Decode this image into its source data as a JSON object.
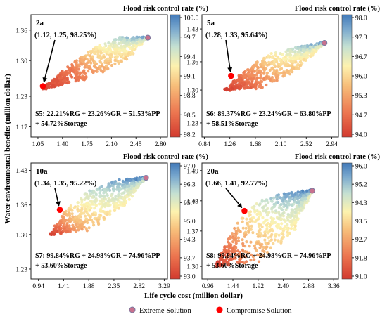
{
  "figure": {
    "y_axis_title": "Water environmental benefits (million dollar)",
    "x_axis_title": "Life cycle cost (million dollar)",
    "legend": [
      {
        "label": "Extreme Solution",
        "color": "#c8718e"
      },
      {
        "label": "Compromise Solution",
        "color": "#ff0000"
      }
    ]
  },
  "chart_data": [
    {
      "type": "scatter",
      "panel": "2a",
      "colorbar_title": "Flood risk control rate (%)",
      "colorbar_ticks": [
        "100.0",
        "99.7",
        "99.4",
        "99.1",
        "98.8",
        "98.5",
        "98.2"
      ],
      "colorbar_range": [
        98.2,
        100.0
      ],
      "x_ticks": [
        "1.05",
        "1.40",
        "1.75",
        "2.10",
        "2.45",
        "2.80"
      ],
      "y_ticks": [
        "1.36",
        "1.30",
        "1.23",
        "1.17"
      ],
      "xlim": [
        0.95,
        2.9
      ],
      "ylim": [
        1.15,
        1.39
      ],
      "front_points": [
        {
          "x": 1.12,
          "y": 1.245,
          "flood": 98.25
        },
        {
          "x": 1.5,
          "y": 1.29,
          "flood": 98.6
        },
        {
          "x": 1.85,
          "y": 1.325,
          "flood": 99.2
        },
        {
          "x": 2.2,
          "y": 1.345,
          "flood": 99.6
        },
        {
          "x": 2.6,
          "y": 1.345,
          "flood": 99.9
        }
      ],
      "back_points": [
        {
          "x": 1.12,
          "y": 1.245
        },
        {
          "x": 1.7,
          "y": 1.262
        },
        {
          "x": 2.3,
          "y": 1.3
        },
        {
          "x": 2.6,
          "y": 1.345
        }
      ],
      "extreme_solution": {
        "x": 2.62,
        "y": 1.345
      },
      "compromise_solution": {
        "x": 1.12,
        "y": 1.25,
        "flood": 98.25
      },
      "annotation": "(1.12, 1.25, 98.25%)",
      "scheme_line1": "S5: 22.21%RG + 23.26%GR + 51.53%PP",
      "scheme_line2": "+ 54.72%Storage"
    },
    {
      "type": "scatter",
      "panel": "5a",
      "colorbar_title": "Flood risk control rate (%)",
      "colorbar_ticks": [
        "98.0",
        "97.3",
        "96.7",
        "96.0",
        "95.3",
        "94.7",
        "94.0"
      ],
      "colorbar_range": [
        94.0,
        98.0
      ],
      "x_ticks": [
        "0.84",
        "1.26",
        "1.68",
        "2.10",
        "2.52",
        "2.94"
      ],
      "y_ticks": [
        "1.43",
        "1.36",
        "1.30",
        "1.23"
      ],
      "xlim": [
        0.8,
        3.05
      ],
      "ylim": [
        1.2,
        1.46
      ],
      "front_points": [
        {
          "x": 1.17,
          "y": 1.3,
          "flood": 94.0
        },
        {
          "x": 1.5,
          "y": 1.34,
          "flood": 95.0
        },
        {
          "x": 1.9,
          "y": 1.375,
          "flood": 96.2
        },
        {
          "x": 2.3,
          "y": 1.39,
          "flood": 97.0
        },
        {
          "x": 2.8,
          "y": 1.4,
          "flood": 97.8
        }
      ],
      "back_points": [
        {
          "x": 1.17,
          "y": 1.3
        },
        {
          "x": 1.8,
          "y": 1.305
        },
        {
          "x": 2.4,
          "y": 1.345
        },
        {
          "x": 2.8,
          "y": 1.4
        }
      ],
      "extreme_solution": {
        "x": 2.82,
        "y": 1.4
      },
      "compromise_solution": {
        "x": 1.28,
        "y": 1.33,
        "flood": 95.64
      },
      "annotation": "(1.28, 1.33, 95.64%)",
      "scheme_line1": "S6: 89.37%RG + 23.24%GR + 63.80%PP",
      "scheme_line2": "+ 58.51%Storage"
    },
    {
      "type": "scatter",
      "panel": "10a",
      "colorbar_title": "Flood risk control rate (%)",
      "colorbar_ticks": [
        "97.0",
        "96.3",
        "95.7",
        "95.0",
        "94.3",
        "93.7",
        "93.0"
      ],
      "colorbar_range": [
        93.0,
        97.0
      ],
      "x_ticks": [
        "0.94",
        "1.41",
        "1.88",
        "2.35",
        "2.82",
        "3.29"
      ],
      "y_ticks": [
        "1.43",
        "1.36",
        "1.30",
        "1.23"
      ],
      "xlim": [
        0.8,
        3.35
      ],
      "ylim": [
        1.21,
        1.445
      ],
      "front_points": [
        {
          "x": 1.15,
          "y": 1.3,
          "flood": 93.0
        },
        {
          "x": 1.5,
          "y": 1.355,
          "flood": 95.0
        },
        {
          "x": 1.9,
          "y": 1.39,
          "flood": 96.0
        },
        {
          "x": 2.4,
          "y": 1.41,
          "flood": 96.6
        },
        {
          "x": 2.95,
          "y": 1.415,
          "flood": 97.0
        }
      ],
      "back_points": [
        {
          "x": 1.15,
          "y": 1.3
        },
        {
          "x": 1.9,
          "y": 1.31
        },
        {
          "x": 2.5,
          "y": 1.355
        },
        {
          "x": 2.95,
          "y": 1.415
        }
      ],
      "extreme_solution": {
        "x": 2.95,
        "y": 1.415
      },
      "compromise_solution": {
        "x": 1.34,
        "y": 1.35,
        "flood": 95.22
      },
      "annotation": "(1.34, 1.35, 95.22%)",
      "scheme_line1": "S7: 99.84%RG + 24.98%GR + 74.96%PP",
      "scheme_line2": "+ 53.60%Storage"
    },
    {
      "type": "scatter",
      "panel": "20a",
      "colorbar_title": "Flood risk control rate (%)",
      "colorbar_ticks": [
        "96.0",
        "95.2",
        "94.3",
        "93.5",
        "92.7",
        "91.8",
        "91.0"
      ],
      "colorbar_range": [
        91.0,
        96.0
      ],
      "x_ticks": [
        "0.96",
        "1.44",
        "1.92",
        "2.40",
        "2.88",
        "3.36"
      ],
      "y_ticks": [
        "1.49",
        "1.43",
        "1.37",
        "1.30"
      ],
      "xlim": [
        0.85,
        3.45
      ],
      "ylim": [
        1.275,
        1.505
      ],
      "front_points": [
        {
          "x": 1.1,
          "y": 1.3,
          "flood": 91.0
        },
        {
          "x": 1.5,
          "y": 1.385,
          "flood": 93.0
        },
        {
          "x": 1.95,
          "y": 1.43,
          "flood": 94.5
        },
        {
          "x": 2.4,
          "y": 1.445,
          "flood": 95.5
        },
        {
          "x": 2.95,
          "y": 1.45,
          "flood": 96.0
        }
      ],
      "back_points": [
        {
          "x": 1.1,
          "y": 1.3
        },
        {
          "x": 1.95,
          "y": 1.31
        },
        {
          "x": 2.6,
          "y": 1.37
        },
        {
          "x": 2.95,
          "y": 1.45
        }
      ],
      "extreme_solution": {
        "x": 2.95,
        "y": 1.45
      },
      "compromise_solution": {
        "x": 1.66,
        "y": 1.41,
        "flood": 92.77
      },
      "annotation": "(1.66, 1.41, 92.77%)",
      "scheme_line1": "S8: 99.84%RG + 24.98%GR + 74.96%PP",
      "scheme_line2": "+ 53.60%Storage"
    }
  ]
}
